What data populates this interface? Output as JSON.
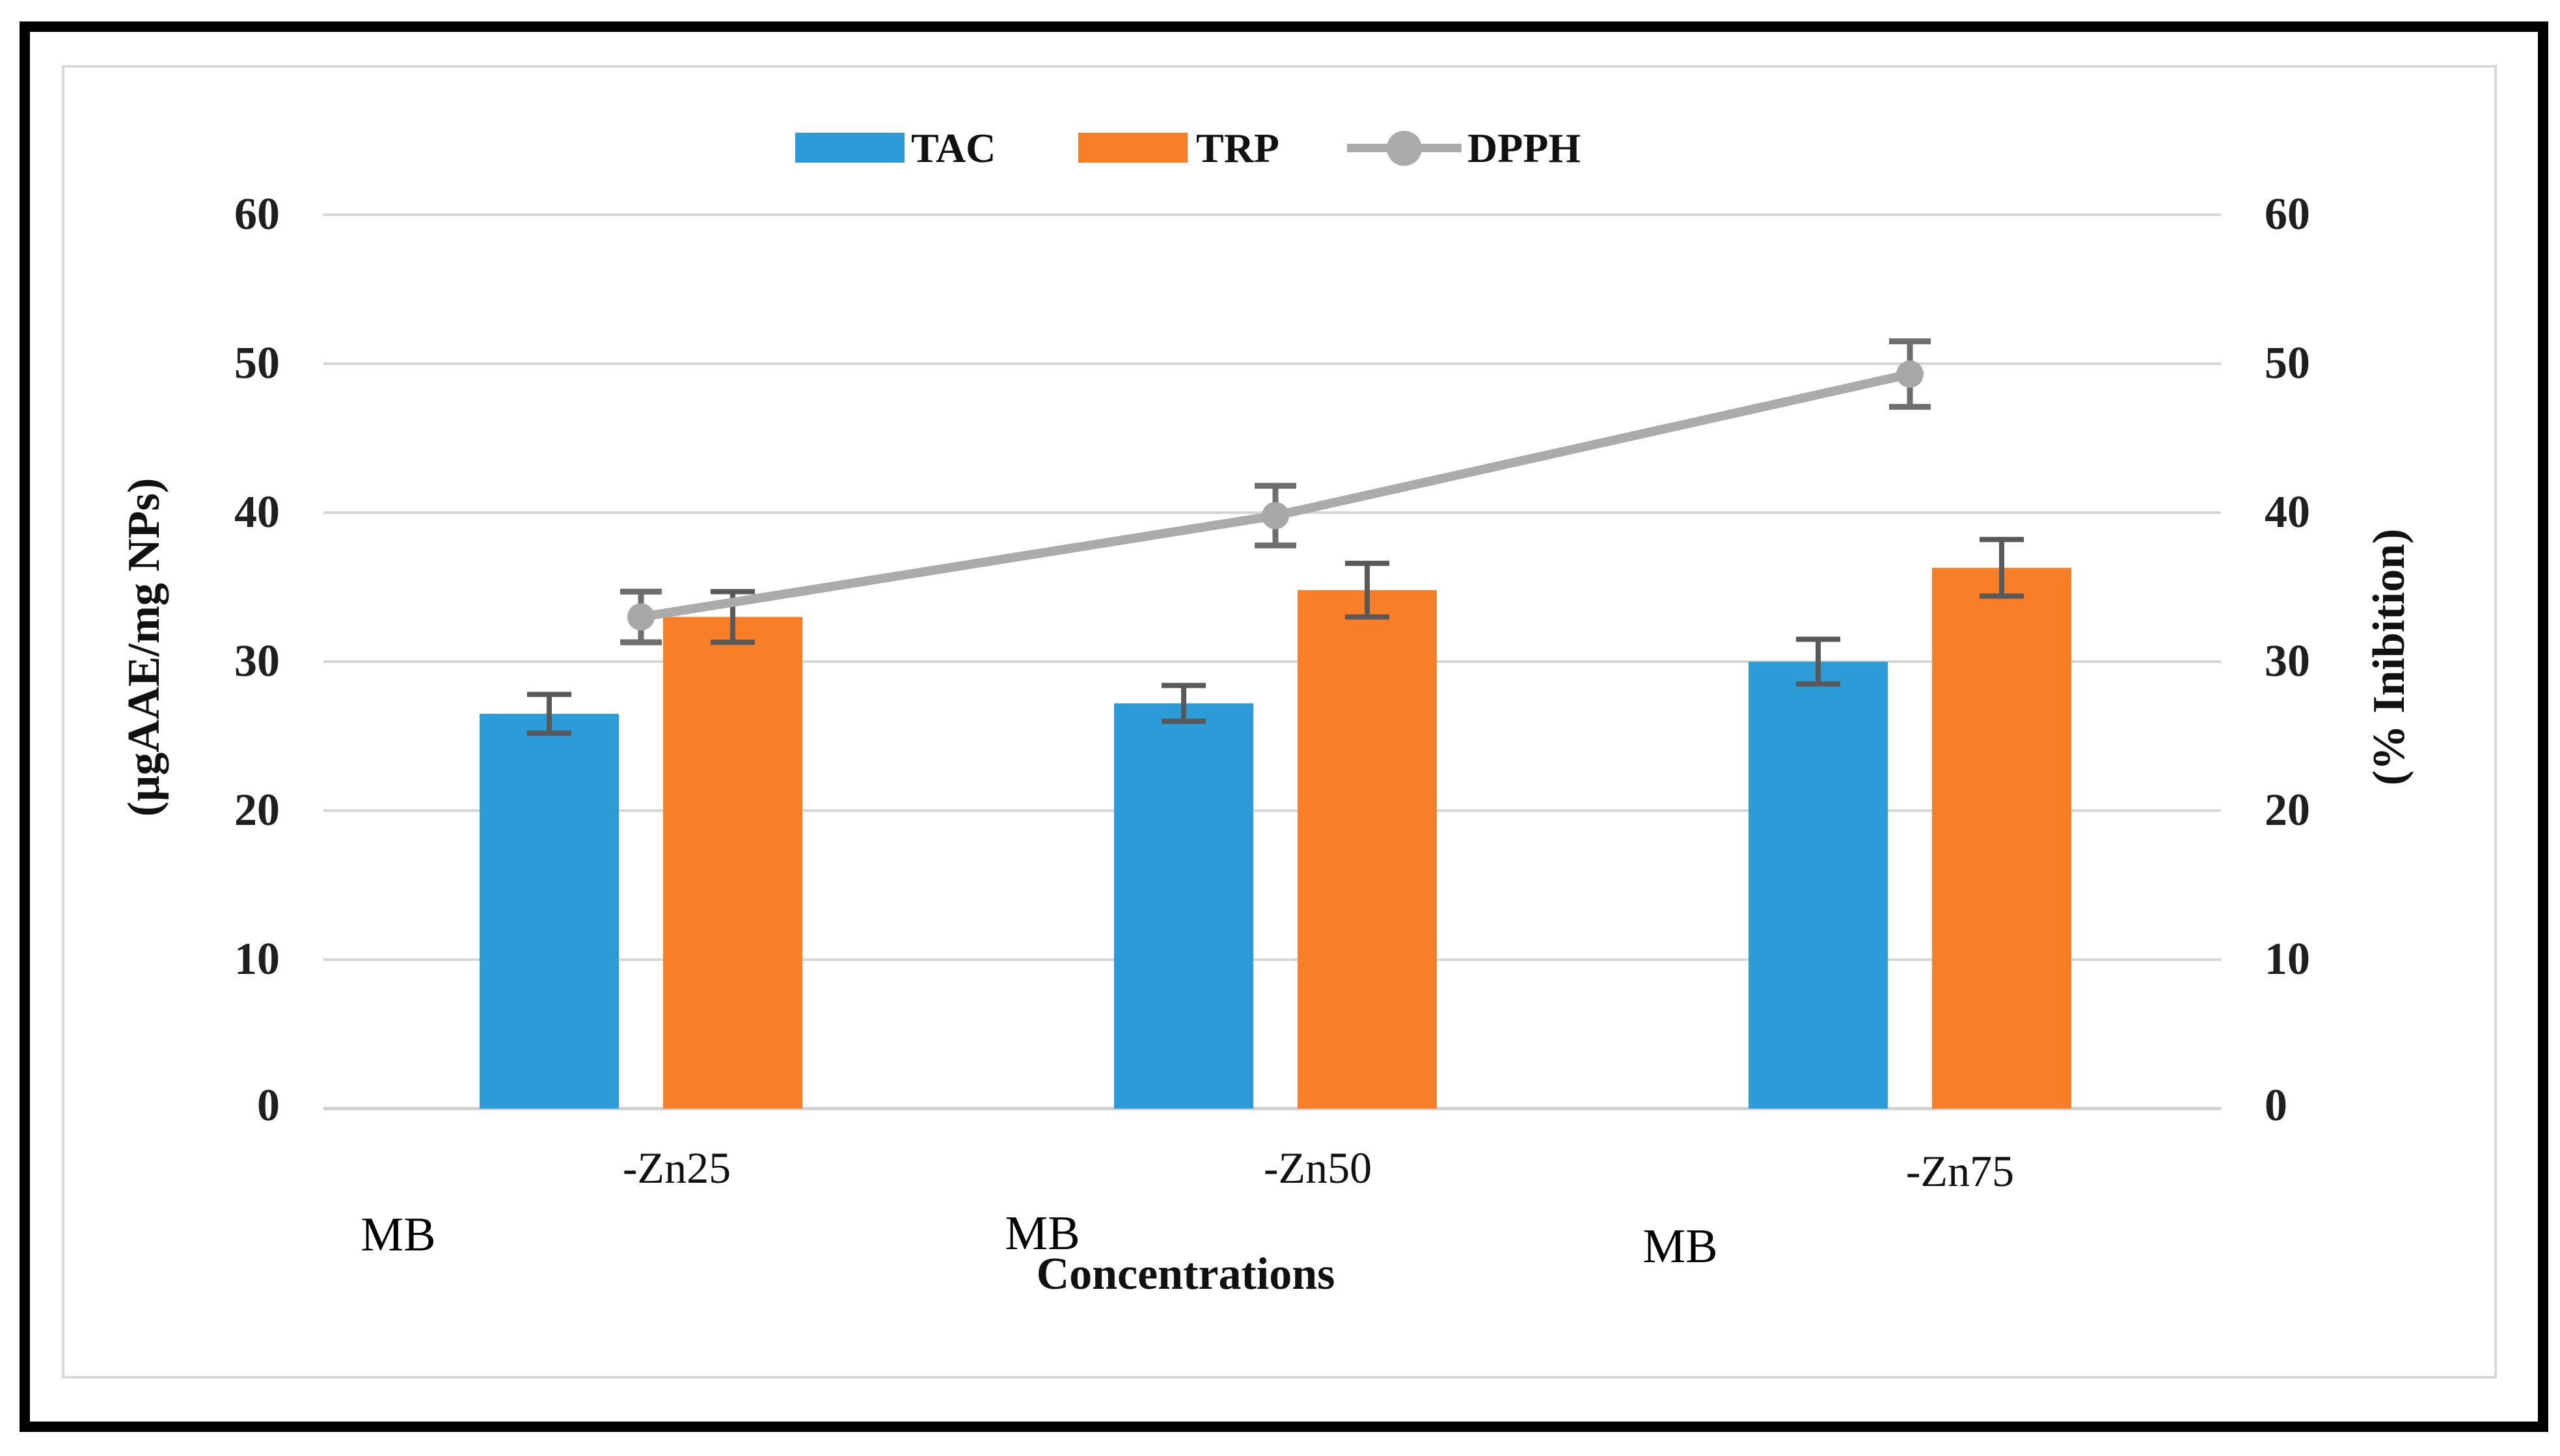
{
  "figure": {
    "kind": "excel-style combo chart",
    "background": "#ffffff"
  },
  "legend": {
    "items": [
      {
        "label": "TAC",
        "swatch": "bar",
        "color": "#2b9cd8"
      },
      {
        "label": "TRP",
        "swatch": "bar",
        "color": "#f87e27"
      },
      {
        "label": "DPPH",
        "swatch": "line-marker",
        "color": "#a9a9a9"
      }
    ]
  },
  "axes": {
    "left": {
      "title": "(µgAAE/mg NPs)",
      "ticks": [
        "60",
        "50",
        "40",
        "30",
        "20",
        "10",
        "0"
      ]
    },
    "right": {
      "title": "(% Inibition)",
      "ticks": [
        "60",
        "50",
        "40",
        "30",
        "20",
        "10",
        "0"
      ]
    },
    "x": {
      "title": "Concentrations",
      "tick_labels": [
        "-Zn25",
        "-Zn50",
        "-Zn75"
      ],
      "prefix_labels": [
        "MB",
        "MB",
        "MB"
      ]
    }
  },
  "colors": {
    "tac": "#2b9cd8",
    "trp": "#f87e27",
    "dpph_line": "#ababab",
    "dpph_marker": "#a8a8a8",
    "bar_error": "#595959",
    "line_error": "#6e6e6e",
    "grid": "#d6d6d6",
    "baseline": "#cfcfcf",
    "inner_border": "#d9d9d9",
    "frame": "#000000"
  },
  "chart_data": {
    "type": "bar",
    "subtype": "clustered bars + overlaid line series",
    "categories": [
      "MB-Zn25",
      "MB-Zn50",
      "MB-Zn75"
    ],
    "x_tick_labels": [
      "-Zn25",
      "-Zn50",
      "-Zn75"
    ],
    "x_prefix_labels": [
      "MB",
      "MB",
      "MB"
    ],
    "xlabel": "Concentrations",
    "ylabel_left": "(µgAAE/mg NPs)",
    "ylabel_right": "(% Inibition)",
    "ylim": [
      0,
      60
    ],
    "yticks": [
      0,
      10,
      20,
      30,
      40,
      50,
      60
    ],
    "grid": true,
    "legend_position": "top-center",
    "series": [
      {
        "name": "TAC",
        "type": "bar",
        "axis": "left",
        "color": "#2b9cd8",
        "values": [
          26.5,
          27.2,
          30.0
        ],
        "errors": [
          1.3,
          1.2,
          1.5
        ]
      },
      {
        "name": "TRP",
        "type": "bar",
        "axis": "left",
        "color": "#f87e27",
        "values": [
          33.0,
          34.8,
          36.3
        ],
        "errors": [
          1.7,
          1.8,
          1.9
        ]
      },
      {
        "name": "DPPH",
        "type": "line",
        "axis": "right",
        "color": "#a9a9a9",
        "marker": "circle",
        "values": [
          33.0,
          39.8,
          49.3
        ],
        "errors": [
          1.7,
          2.0,
          2.2
        ]
      }
    ]
  }
}
